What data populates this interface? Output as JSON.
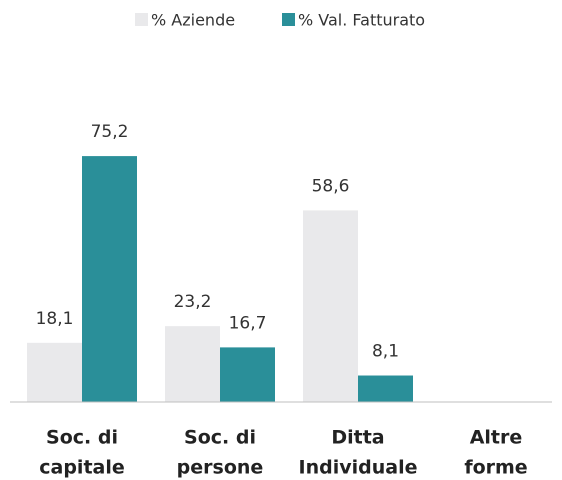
{
  "chart_data": {
    "type": "bar",
    "categories": [
      [
        "Soc. di",
        "capitale"
      ],
      [
        "Soc. di",
        "persone"
      ],
      [
        "Ditta",
        "Individuale"
      ],
      [
        "Altre",
        "forme"
      ]
    ],
    "series": [
      {
        "name": "% Aziende",
        "color": "#e9e9eb",
        "values": [
          18.1,
          23.2,
          58.6,
          null
        ],
        "value_labels": [
          "18,1",
          "23,2",
          "58,6",
          null
        ]
      },
      {
        "name": "% Val. Fatturato",
        "color": "#2a8f99",
        "values": [
          75.2,
          16.7,
          8.1,
          null
        ],
        "value_labels": [
          "75,2",
          "16,7",
          "8,1",
          null
        ]
      }
    ],
    "ylim": [
      0,
      100
    ],
    "legend": "top"
  }
}
